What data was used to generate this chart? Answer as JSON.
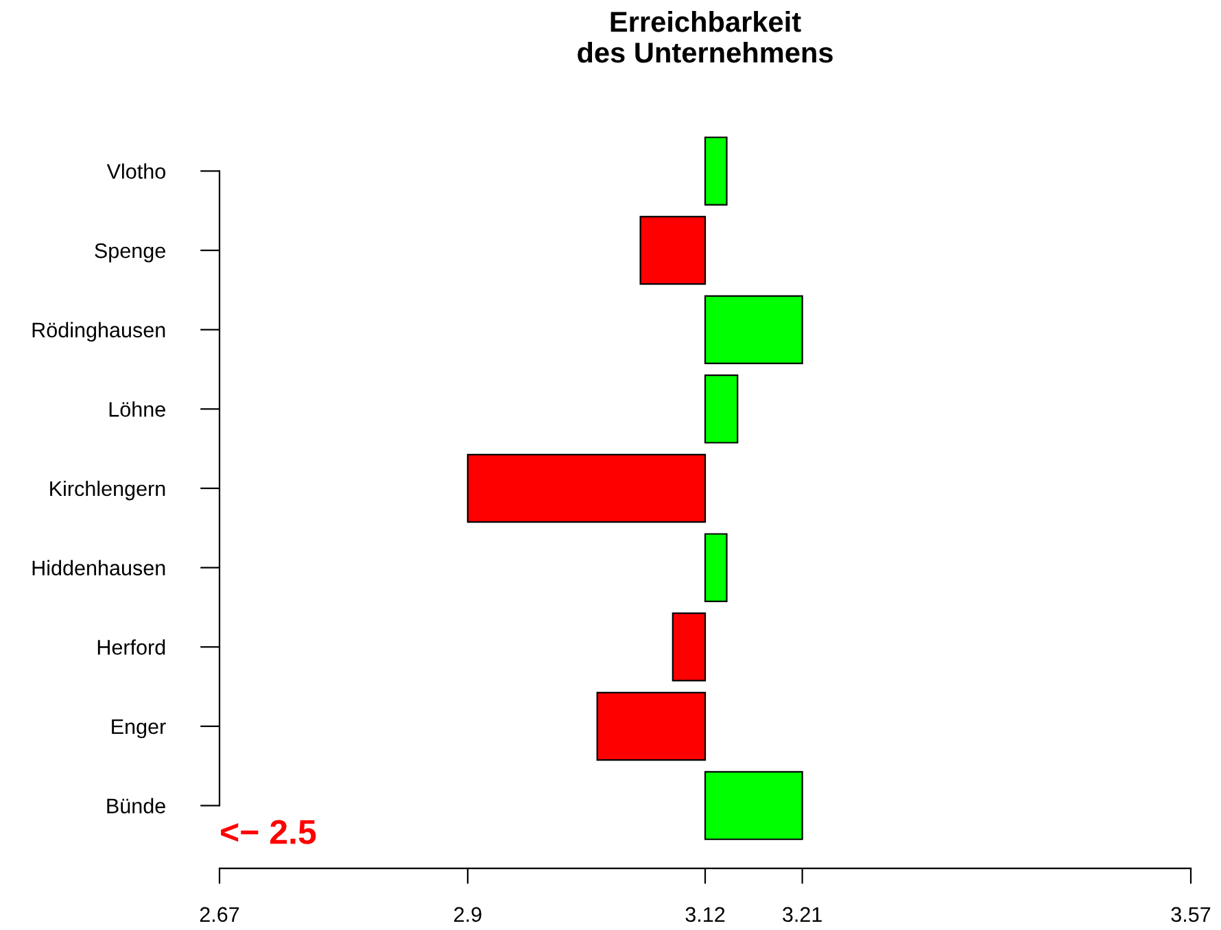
{
  "chart_data": {
    "type": "bar",
    "orientation": "horizontal",
    "title": "Erreichbarkeit\ndes Unternehmens",
    "categories": [
      "Vlotho",
      "Spenge",
      "Rödinghausen",
      "Löhne",
      "Kirchlengern",
      "Hiddenhausen",
      "Herford",
      "Enger",
      "Bünde"
    ],
    "base": [
      3.12,
      3.12,
      3.12,
      3.12,
      3.12,
      3.12,
      3.12,
      3.12,
      3.12
    ],
    "values": [
      0.02,
      -0.06,
      0.09,
      0.03,
      -0.22,
      0.02,
      -0.03,
      -0.1,
      0.09
    ],
    "colors": [
      "#00ff00",
      "#ff0000",
      "#00ff00",
      "#00ff00",
      "#ff0000",
      "#00ff00",
      "#ff0000",
      "#ff0000",
      "#00ff00"
    ],
    "xlim": [
      2.67,
      3.57
    ],
    "xticks": [
      2.67,
      2.9,
      3.12,
      3.21,
      3.57
    ],
    "annotations": [
      "<− 2.5"
    ],
    "grid": false,
    "legend": false
  }
}
